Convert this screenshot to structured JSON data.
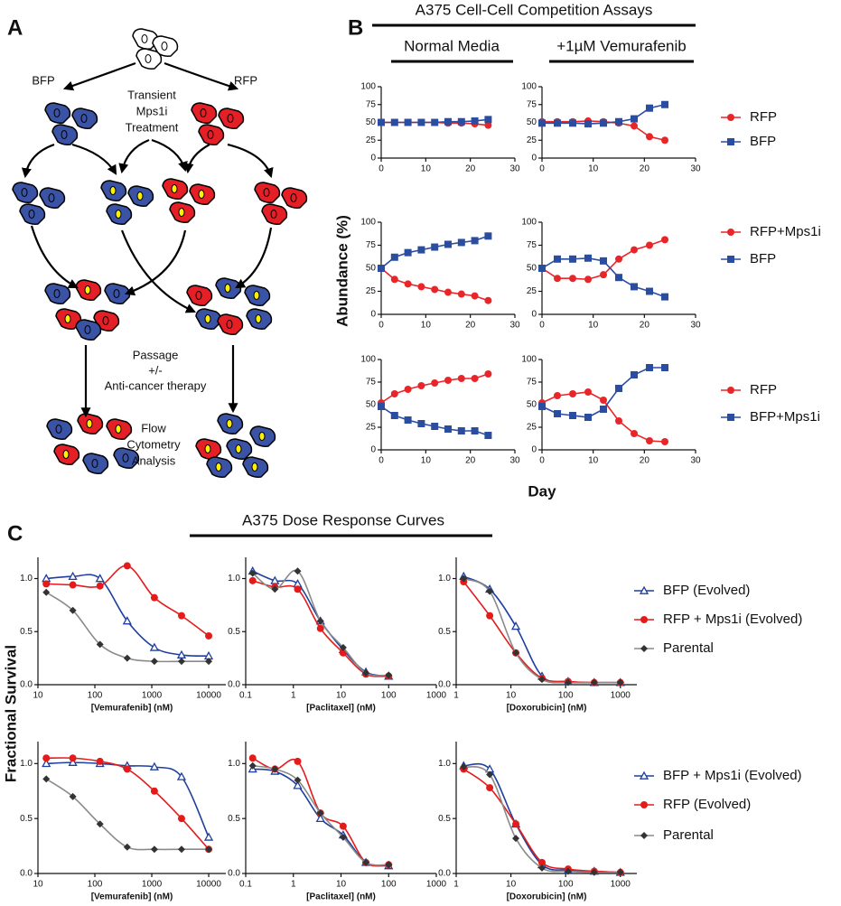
{
  "panels": {
    "a": "A",
    "b": "B",
    "c": "C"
  },
  "diagram": {
    "bfp": "BFP",
    "rfp": "RFP",
    "treatment": [
      "Transient",
      "Mps1i",
      "Treatment"
    ],
    "passage": [
      "Passage",
      "+/-",
      "Anti-cancer therapy"
    ],
    "analysis": [
      "Flow",
      "Cytometry",
      "Analysis"
    ]
  },
  "competition": {
    "title": "A375 Cell-Cell Competition Assays",
    "columns": [
      "Normal Media",
      "+1µM Vemurafenib"
    ],
    "ylabel": "Abundance (%)",
    "xlabel": "Day"
  },
  "dose_response": {
    "title": "A375 Dose Response Curves",
    "ylabel": "Fractional Survival"
  },
  "chart_data": [
    {
      "type": "line",
      "x": [
        0,
        3,
        6,
        9,
        12,
        15,
        18,
        21,
        24
      ],
      "xlim": [
        0,
        30
      ],
      "xticks": [
        0,
        10,
        20,
        30
      ],
      "ylim": [
        0,
        100
      ],
      "yticks": [
        0,
        25,
        50,
        75,
        100
      ],
      "series": [
        {
          "color": "#e8262a",
          "marker": "circle",
          "values": [
            50,
            50,
            50,
            50,
            50,
            49,
            49,
            48,
            46
          ]
        },
        {
          "color": "#2b4da0",
          "marker": "square",
          "values": [
            50,
            50,
            50,
            50,
            50,
            51,
            51,
            52,
            54
          ]
        }
      ]
    },
    {
      "type": "line",
      "x": [
        0,
        3,
        6,
        9,
        12,
        15,
        18,
        21,
        24
      ],
      "xlim": [
        0,
        30
      ],
      "xticks": [
        0,
        10,
        20,
        30
      ],
      "ylim": [
        0,
        100
      ],
      "yticks": [
        0,
        25,
        50,
        75,
        100
      ],
      "series": [
        {
          "name": "RFP",
          "color": "#e8262a",
          "marker": "circle",
          "values": [
            51,
            51,
            51,
            52,
            51,
            49,
            45,
            30,
            25
          ]
        },
        {
          "name": "BFP",
          "color": "#2b4da0",
          "marker": "square",
          "values": [
            49,
            49,
            49,
            48,
            49,
            51,
            55,
            70,
            75
          ]
        }
      ]
    },
    {
      "type": "line",
      "x": [
        0,
        3,
        6,
        9,
        12,
        15,
        18,
        21,
        24
      ],
      "xlim": [
        0,
        30
      ],
      "xticks": [
        0,
        10,
        20,
        30
      ],
      "ylim": [
        0,
        100
      ],
      "yticks": [
        0,
        25,
        50,
        75,
        100
      ],
      "series": [
        {
          "color": "#e8262a",
          "marker": "circle",
          "values": [
            50,
            38,
            33,
            30,
            27,
            24,
            22,
            20,
            15
          ]
        },
        {
          "color": "#2b4da0",
          "marker": "square",
          "values": [
            50,
            62,
            67,
            70,
            73,
            76,
            78,
            80,
            85
          ]
        }
      ]
    },
    {
      "type": "line",
      "x": [
        0,
        3,
        6,
        9,
        12,
        15,
        18,
        21,
        24
      ],
      "xlim": [
        0,
        30
      ],
      "xticks": [
        0,
        10,
        20,
        30
      ],
      "ylim": [
        0,
        100
      ],
      "yticks": [
        0,
        25,
        50,
        75,
        100
      ],
      "series": [
        {
          "name": "RFP+Mps1i",
          "color": "#e8262a",
          "marker": "circle",
          "values": [
            50,
            39,
            39,
            38,
            43,
            60,
            70,
            75,
            81
          ]
        },
        {
          "name": "BFP",
          "color": "#2b4da0",
          "marker": "square",
          "values": [
            50,
            60,
            60,
            61,
            58,
            40,
            30,
            25,
            19
          ]
        }
      ]
    },
    {
      "type": "line",
      "x": [
        0,
        3,
        6,
        9,
        12,
        15,
        18,
        21,
        24
      ],
      "xlim": [
        0,
        30
      ],
      "xticks": [
        0,
        10,
        20,
        30
      ],
      "ylim": [
        0,
        100
      ],
      "yticks": [
        0,
        25,
        50,
        75,
        100
      ],
      "series": [
        {
          "color": "#e8262a",
          "marker": "circle",
          "values": [
            52,
            62,
            67,
            71,
            74,
            77,
            79,
            79,
            84
          ]
        },
        {
          "color": "#2b4da0",
          "marker": "square",
          "values": [
            48,
            38,
            33,
            29,
            26,
            23,
            21,
            21,
            16
          ]
        }
      ]
    },
    {
      "type": "line",
      "x": [
        0,
        3,
        6,
        9,
        12,
        15,
        18,
        21,
        24
      ],
      "xlim": [
        0,
        30
      ],
      "xticks": [
        0,
        10,
        20,
        30
      ],
      "ylim": [
        0,
        100
      ],
      "yticks": [
        0,
        25,
        50,
        75,
        100
      ],
      "series": [
        {
          "name": "RFP",
          "color": "#e8262a",
          "marker": "circle",
          "values": [
            52,
            60,
            62,
            64,
            55,
            32,
            18,
            10,
            9
          ]
        },
        {
          "name": "BFP+Mps1i",
          "color": "#2b4da0",
          "marker": "square",
          "values": [
            48,
            40,
            38,
            36,
            45,
            68,
            83,
            91,
            91
          ]
        }
      ]
    },
    {
      "type": "dose",
      "xlabel": "[Vemurafenib] (nM)",
      "log_x": true,
      "x": [
        14,
        41,
        123,
        370,
        1111,
        3333,
        10000
      ],
      "xlim": [
        10,
        20000
      ],
      "xticks": [
        10,
        100,
        1000,
        10000
      ],
      "ylim": [
        0,
        1.2
      ],
      "yticks": [
        {
          "value": 0,
          "label": "0.0"
        },
        {
          "value": 0.5,
          "label": "0.5"
        },
        {
          "value": 1,
          "label": "1.0"
        }
      ],
      "series": [
        {
          "color": "#1f3f9e",
          "marker": "triangle",
          "values": [
            1.0,
            1.02,
            1.0,
            0.6,
            0.35,
            0.28,
            0.27
          ]
        },
        {
          "color": "#e41b1b",
          "marker": "circle",
          "values": [
            0.95,
            0.94,
            0.93,
            1.12,
            0.82,
            0.65,
            0.46
          ]
        },
        {
          "color": "#8a8a8a",
          "marker": "diamond",
          "values": [
            0.87,
            0.7,
            0.38,
            0.25,
            0.22,
            0.22,
            0.22
          ]
        }
      ]
    },
    {
      "type": "dose",
      "xlabel": "[Paclitaxel] (nM)",
      "log_x": true,
      "x": [
        0.14,
        0.41,
        1.23,
        3.7,
        11.1,
        33.3,
        100
      ],
      "xlim": [
        0.1,
        1000
      ],
      "xticks": [
        0.1,
        1,
        10,
        100,
        1000
      ],
      "ylim": [
        0,
        1.2
      ],
      "yticks": [
        {
          "value": 0,
          "label": "0.0"
        },
        {
          "value": 0.5,
          "label": "0.5"
        },
        {
          "value": 1,
          "label": "1.0"
        }
      ],
      "series": [
        {
          "color": "#1f3f9e",
          "marker": "triangle",
          "values": [
            1.07,
            0.98,
            0.95,
            0.6,
            0.33,
            0.12,
            0.08
          ]
        },
        {
          "color": "#e41b1b",
          "marker": "circle",
          "values": [
            0.98,
            0.92,
            0.9,
            0.53,
            0.3,
            0.1,
            0.08
          ]
        },
        {
          "color": "#8a8a8a",
          "marker": "diamond",
          "values": [
            1.05,
            0.9,
            1.07,
            0.6,
            0.35,
            0.11,
            0.09
          ]
        }
      ]
    },
    {
      "type": "dose",
      "xlabel": "[Doxorubicin] (nM)",
      "log_x": true,
      "x": [
        1.37,
        4.1,
        12.3,
        37,
        111,
        333,
        1000
      ],
      "xlim": [
        1,
        2000
      ],
      "xticks": [
        1,
        10,
        100,
        1000
      ],
      "ylim": [
        0,
        1.2
      ],
      "yticks": [
        {
          "value": 0,
          "label": "0.0"
        },
        {
          "value": 0.5,
          "label": "0.5"
        },
        {
          "value": 1,
          "label": "1.0"
        }
      ],
      "series": [
        {
          "name": "BFP (Evolved)",
          "color": "#1f3f9e",
          "marker": "triangle",
          "values": [
            1.02,
            0.9,
            0.55,
            0.08,
            0.03,
            0.02,
            0.02
          ]
        },
        {
          "name": "RFP + Mps1i (Evolved)",
          "color": "#e41b1b",
          "marker": "circle",
          "values": [
            0.97,
            0.65,
            0.3,
            0.06,
            0.03,
            0.02,
            0.02
          ]
        },
        {
          "name": "Parental",
          "color": "#8a8a8a",
          "marker": "diamond",
          "values": [
            1.0,
            0.88,
            0.3,
            0.05,
            0.02,
            0.02,
            0.02
          ]
        }
      ]
    },
    {
      "type": "dose",
      "xlabel": "[Vemurafenib] (nM)",
      "log_x": true,
      "x": [
        14,
        41,
        123,
        370,
        1111,
        3333,
        10000
      ],
      "xlim": [
        10,
        20000
      ],
      "xticks": [
        10,
        100,
        1000,
        10000
      ],
      "ylim": [
        0,
        1.2
      ],
      "yticks": [
        {
          "value": 0,
          "label": "0.0"
        },
        {
          "value": 0.5,
          "label": "0.5"
        },
        {
          "value": 1,
          "label": "1.0"
        }
      ],
      "series": [
        {
          "color": "#1f3f9e",
          "marker": "triangle",
          "values": [
            1.0,
            1.01,
            1.0,
            0.98,
            0.97,
            0.88,
            0.33
          ]
        },
        {
          "color": "#e41b1b",
          "marker": "circle",
          "values": [
            1.05,
            1.05,
            1.02,
            0.95,
            0.75,
            0.5,
            0.22
          ]
        },
        {
          "color": "#8a8a8a",
          "marker": "diamond",
          "values": [
            0.86,
            0.7,
            0.45,
            0.24,
            0.22,
            0.22,
            0.22
          ]
        }
      ]
    },
    {
      "type": "dose",
      "xlabel": "[Paclitaxel] (nM)",
      "log_x": true,
      "x": [
        0.14,
        0.41,
        1.23,
        3.7,
        11.1,
        33.3,
        100
      ],
      "xlim": [
        0.1,
        1000
      ],
      "xticks": [
        0.1,
        1,
        10,
        100,
        1000
      ],
      "ylim": [
        0,
        1.2
      ],
      "yticks": [
        {
          "value": 0,
          "label": "0.0"
        },
        {
          "value": 0.5,
          "label": "0.5"
        },
        {
          "value": 1,
          "label": "1.0"
        }
      ],
      "series": [
        {
          "color": "#1f3f9e",
          "marker": "triangle",
          "values": [
            0.95,
            0.93,
            0.8,
            0.5,
            0.35,
            0.1,
            0.07
          ]
        },
        {
          "color": "#e41b1b",
          "marker": "circle",
          "values": [
            1.05,
            0.95,
            1.02,
            0.55,
            0.43,
            0.1,
            0.08
          ]
        },
        {
          "color": "#8a8a8a",
          "marker": "diamond",
          "values": [
            0.98,
            0.95,
            0.85,
            0.55,
            0.33,
            0.1,
            0.08
          ]
        }
      ]
    },
    {
      "type": "dose",
      "xlabel": "[Doxorubicin] (nM)",
      "log_x": true,
      "x": [
        1.37,
        4.1,
        12.3,
        37,
        111,
        333,
        1000
      ],
      "xlim": [
        1,
        2000
      ],
      "xticks": [
        1,
        10,
        100,
        1000
      ],
      "ylim": [
        0,
        1.2
      ],
      "yticks": [
        {
          "value": 0,
          "label": "0.0"
        },
        {
          "value": 0.5,
          "label": "0.5"
        },
        {
          "value": 1,
          "label": "1.0"
        }
      ],
      "series": [
        {
          "name": "BFP + Mps1i (Evolved)",
          "color": "#1f3f9e",
          "marker": "triangle",
          "values": [
            0.98,
            0.95,
            0.45,
            0.08,
            0.03,
            0.02,
            0.01
          ]
        },
        {
          "name": "RFP (Evolved)",
          "color": "#e41b1b",
          "marker": "circle",
          "values": [
            0.95,
            0.78,
            0.45,
            0.1,
            0.04,
            0.02,
            0.01
          ]
        },
        {
          "name": "Parental",
          "color": "#8a8a8a",
          "marker": "diamond",
          "values": [
            0.97,
            0.9,
            0.32,
            0.05,
            0.02,
            0.01,
            0.01
          ]
        }
      ]
    }
  ]
}
